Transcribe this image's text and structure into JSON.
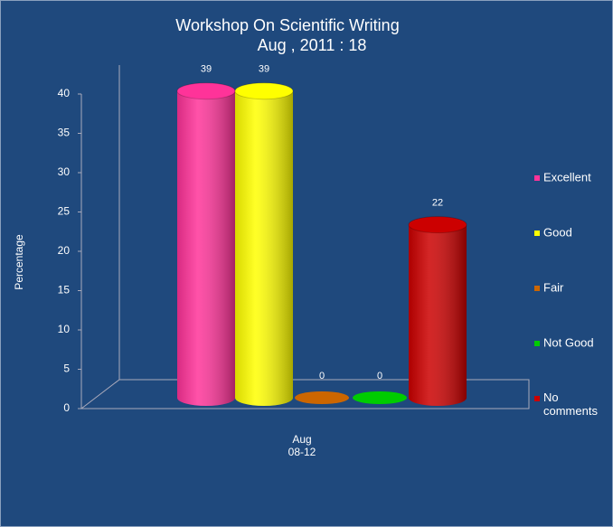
{
  "chart_data": {
    "type": "bar3d",
    "title": "Workshop On Scientific Writing",
    "subtitle": "Aug , 2011 : 18",
    "y_label": "Percentage",
    "categories": [
      "Aug 08-12"
    ],
    "series": [
      {
        "name": "Excellent",
        "color": "#ff3399",
        "values": [
          39
        ]
      },
      {
        "name": "Good",
        "color": "#ffff00",
        "values": [
          39
        ]
      },
      {
        "name": "Fair",
        "color": "#cc6600",
        "values": [
          0
        ]
      },
      {
        "name": "Not Good",
        "color": "#00cc00",
        "values": [
          0
        ]
      },
      {
        "name": "No comments",
        "color": "#cc0000",
        "values": [
          22
        ]
      }
    ],
    "ylim": [
      0,
      40
    ],
    "yticks": [
      0,
      5,
      10,
      15,
      20,
      25,
      30,
      35,
      40
    ],
    "legend": "right"
  }
}
